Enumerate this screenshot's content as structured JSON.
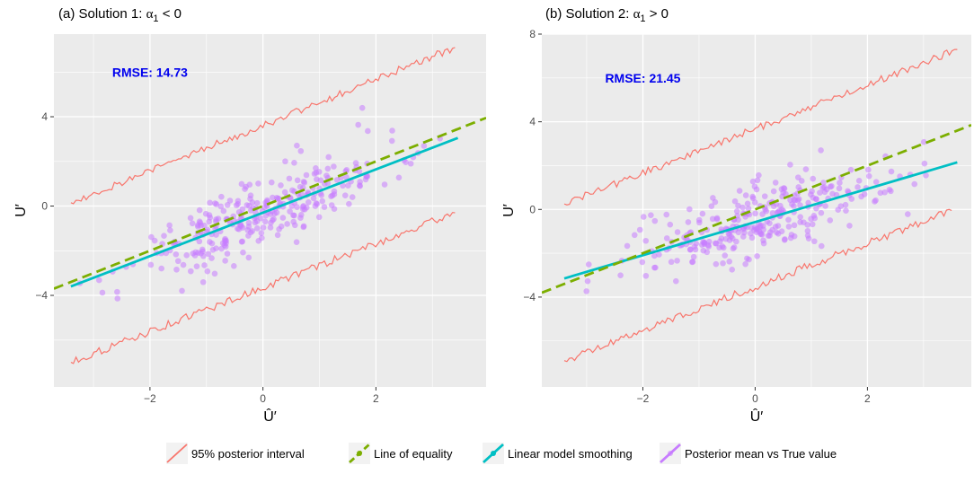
{
  "colors": {
    "panel_bg": "#ebebeb",
    "grid_major": "#ffffff",
    "interval": "#f8766d",
    "equality": "#7cae00",
    "smooth": "#00bfc4",
    "points": "#c77cff",
    "rmse_text": "#0000ee"
  },
  "legend": {
    "items": [
      {
        "key": "interval",
        "label": "95% posterior interval"
      },
      {
        "key": "equality",
        "label": "Line of equality"
      },
      {
        "key": "smooth",
        "label": "Linear model smoothing"
      },
      {
        "key": "points",
        "label": "Posterior mean vs True value"
      }
    ]
  },
  "chart_data": [
    {
      "type": "scatter",
      "title_main": "(a) Solution 1: ",
      "title_math": "α",
      "title_sub": "1",
      "title_rel": " < 0",
      "xlabel": "Û′",
      "ylabel": "U′",
      "xlim": [
        -3.7,
        3.95
      ],
      "ylim": [
        -8.1,
        7.7
      ],
      "xticks": [
        -2,
        0,
        2
      ],
      "xtick_labels": [
        "−2",
        "0",
        "2"
      ],
      "yticks": [
        -4,
        0,
        4
      ],
      "ytick_labels": [
        "−4",
        "0",
        "4"
      ],
      "grid": true,
      "annotation": "RMSE: 14.73",
      "annotation_pos": [
        -2.0,
        6.0
      ],
      "equality": {
        "slope": 1.0,
        "intercept": 0.0
      },
      "smooth": {
        "x": [
          -3.4,
          3.45
        ],
        "y": [
          -3.6,
          3.05
        ]
      },
      "interval_upper": {
        "x0": -3.4,
        "y0": 0.15,
        "x1": 3.4,
        "y1": 7.1
      },
      "interval_lower": {
        "x0": -3.4,
        "y0": -7.0,
        "x1": 3.4,
        "y1": -0.3
      },
      "points": {
        "n": 300,
        "x_center": 0,
        "x_sd": 1.15,
        "slope": 0.95,
        "intercept": -0.35,
        "noise_sd": 0.85
      }
    },
    {
      "type": "scatter",
      "title_main": "(b) Solution 2: ",
      "title_math": "α",
      "title_sub": "1",
      "title_rel": " > 0",
      "xlabel": "Û′",
      "ylabel": "U′",
      "xlim": [
        -3.8,
        3.85
      ],
      "ylim": [
        -8.1,
        8.0
      ],
      "xticks": [
        -2,
        0,
        2
      ],
      "xtick_labels": [
        "−2",
        "0",
        "2"
      ],
      "yticks": [
        -4,
        0,
        4,
        8
      ],
      "ytick_labels": [
        "−4",
        "0",
        "4",
        "8"
      ],
      "grid": true,
      "annotation": "RMSE: 21.45",
      "annotation_pos": [
        -2.0,
        6.0
      ],
      "equality": {
        "slope": 1.0,
        "intercept": 0.0
      },
      "smooth": {
        "x": [
          -3.4,
          3.6
        ],
        "y": [
          -3.15,
          2.15
        ]
      },
      "interval_upper": {
        "x0": -3.4,
        "y0": 0.25,
        "x1": 3.6,
        "y1": 7.3
      },
      "interval_lower": {
        "x0": -3.4,
        "y0": -6.9,
        "x1": 3.5,
        "y1": -0.05
      },
      "points": {
        "n": 300,
        "x_center": 0,
        "x_sd": 1.15,
        "slope": 0.75,
        "intercept": -0.5,
        "noise_sd": 0.85
      }
    }
  ]
}
